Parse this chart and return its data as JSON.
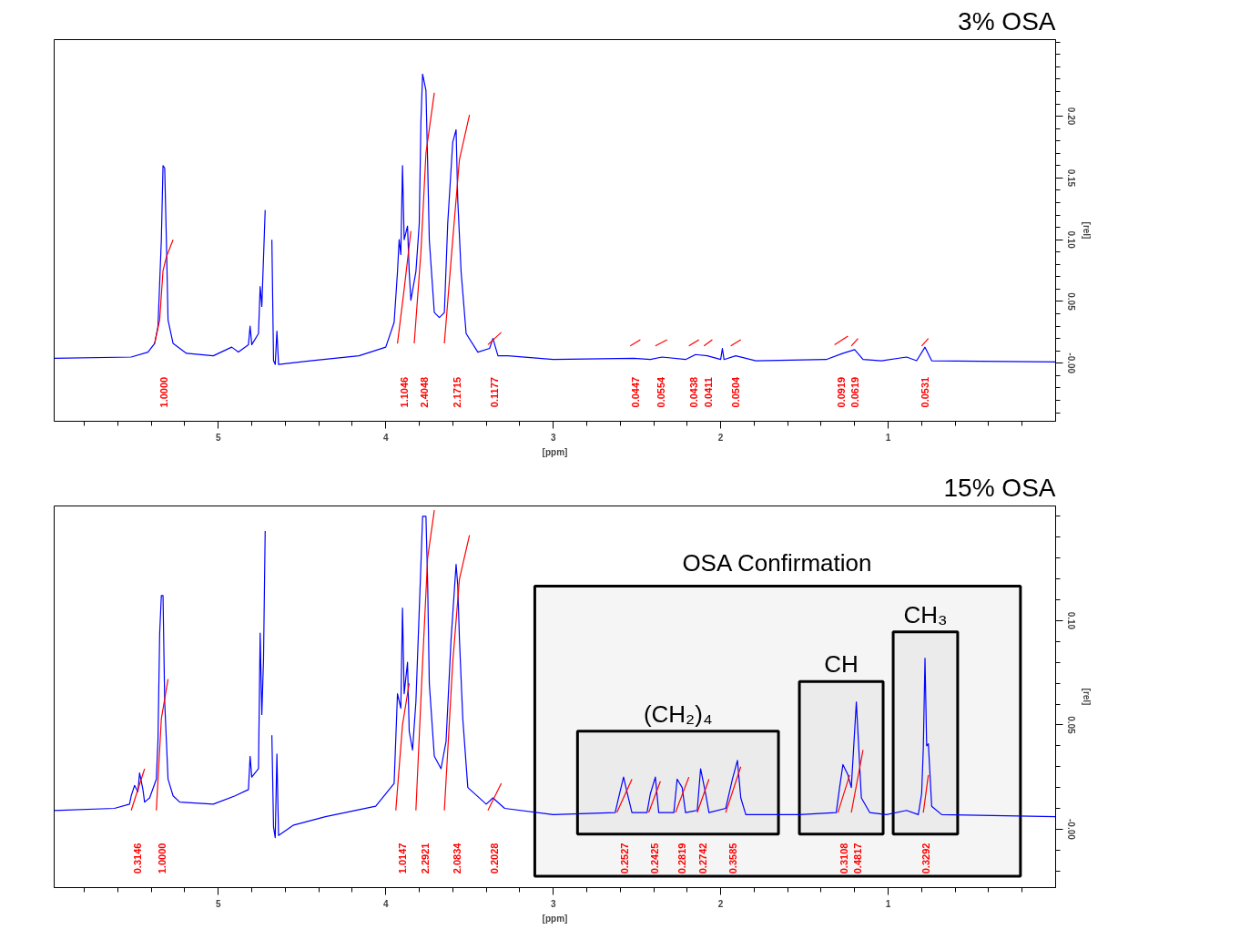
{
  "chart_data": [
    {
      "type": "line",
      "title": "3% OSA",
      "xlabel": "[ppm]",
      "ylabel": "[rel]",
      "xlim": [
        5.98,
        0.0
      ],
      "ylim": [
        -0.047,
        0.262
      ],
      "xticks": [
        {
          "value": 5.8,
          "label": null
        },
        {
          "value": 5.6,
          "label": null
        },
        {
          "value": 5.4,
          "label": null
        },
        {
          "value": 5.2,
          "label": null
        },
        5,
        {
          "value": 4.8,
          "label": null
        },
        {
          "value": 4.6,
          "label": null
        },
        {
          "value": 4.4,
          "label": null
        },
        {
          "value": 4.2,
          "label": null
        },
        4,
        {
          "value": 3.8,
          "label": null
        },
        {
          "value": 3.6,
          "label": null
        },
        {
          "value": 3.4,
          "label": null
        },
        {
          "value": 3.2,
          "label": null
        },
        3,
        {
          "value": 2.8,
          "label": null
        },
        {
          "value": 2.6,
          "label": null
        },
        {
          "value": 2.4,
          "label": null
        },
        {
          "value": 2.2,
          "label": null
        },
        2,
        {
          "value": 1.8,
          "label": null
        },
        {
          "value": 1.6,
          "label": null
        },
        {
          "value": 1.4,
          "label": null
        },
        {
          "value": 1.2,
          "label": null
        },
        1,
        {
          "value": 0.8,
          "label": null
        },
        {
          "value": 0.6,
          "label": null
        },
        {
          "value": 0.4,
          "label": null
        },
        {
          "value": 0.2,
          "label": null
        }
      ],
      "yticks": [
        {
          "value": -0.04,
          "label": null
        },
        {
          "value": -0.03,
          "label": null
        },
        {
          "value": -0.02,
          "label": null
        },
        {
          "value": -0.01,
          "label": null
        },
        {
          "value": 0,
          "label": "-0.00"
        },
        {
          "value": 0.01,
          "label": null
        },
        {
          "value": 0.02,
          "label": null
        },
        {
          "value": 0.03,
          "label": null
        },
        {
          "value": 0.04,
          "label": null
        },
        {
          "value": 0.05,
          "label": "0.05"
        },
        {
          "value": 0.06,
          "label": null
        },
        {
          "value": 0.07,
          "label": null
        },
        {
          "value": 0.08,
          "label": null
        },
        {
          "value": 0.09,
          "label": null
        },
        {
          "value": 0.1,
          "label": "0.10"
        },
        {
          "value": 0.11,
          "label": null
        },
        {
          "value": 0.12,
          "label": null
        },
        {
          "value": 0.13,
          "label": null
        },
        {
          "value": 0.14,
          "label": null
        },
        {
          "value": 0.15,
          "label": "0.15"
        },
        {
          "value": 0.16,
          "label": null
        },
        {
          "value": 0.17,
          "label": null
        },
        {
          "value": 0.18,
          "label": null
        },
        {
          "value": 0.19,
          "label": null
        },
        {
          "value": 0.2,
          "label": "0.20"
        },
        {
          "value": 0.21,
          "label": null
        },
        {
          "value": 0.22,
          "label": null
        },
        {
          "value": 0.23,
          "label": null
        },
        {
          "value": 0.24,
          "label": null
        },
        {
          "value": 0.25,
          "label": null
        },
        {
          "value": 0.26,
          "label": null
        }
      ],
      "annotations": [
        "1.0000",
        "1.1046",
        "2.4048",
        "2.1715",
        "0.1177",
        "0.0447",
        "0.0554",
        "0.0438",
        "0.0411",
        "0.0504",
        "0.0919",
        "0.0619",
        "0.0531"
      ],
      "series": [
        {
          "type": "line",
          "color": "#0000ff",
          "x": [
            5.98,
            5.52,
            5.42,
            5.38,
            5.36,
            5.34,
            5.33,
            5.32,
            5.31,
            5.3,
            5.27,
            5.19,
            5.03,
            4.92,
            4.88,
            4.82,
            4.81,
            4.8,
            4.76,
            4.75,
            4.74,
            4.72,
            4.71,
            4.69,
            4.68,
            4.67,
            4.66,
            4.65,
            4.64,
            4.45,
            4.16,
            4.0,
            3.95,
            3.93,
            3.92,
            3.91,
            3.9,
            3.89,
            3.87,
            3.86,
            3.85,
            3.82,
            3.8,
            3.79,
            3.78,
            3.76,
            3.75,
            3.74,
            3.71,
            3.68,
            3.65,
            3.63,
            3.6,
            3.58,
            3.57,
            3.55,
            3.52,
            3.45,
            3.38,
            3.36,
            3.33,
            3.27,
            3.0,
            2.52,
            2.42,
            2.35,
            2.21,
            2.15,
            2.08,
            2.0,
            1.99,
            1.98,
            1.91,
            1.79,
            1.37,
            1.27,
            1.2,
            1.15,
            1.04,
            0.89,
            0.83,
            0.78,
            0.74,
            0.0
          ],
          "values": [
            0.004,
            0.005,
            0.009,
            0.016,
            0.03,
            0.1,
            0.16,
            0.158,
            0.1,
            0.035,
            0.016,
            0.008,
            0.006,
            0.013,
            0.009,
            0.015,
            0.03,
            0.015,
            0.024,
            0.062,
            0.046,
            0.124,
            null,
            null,
            0.1,
            0.002,
            -0.001,
            0.026,
            -0.001,
            0.002,
            0.006,
            0.013,
            0.033,
            0.074,
            0.1,
            0.088,
            0.16,
            0.1,
            0.111,
            0.074,
            0.051,
            0.074,
            0.113,
            0.196,
            0.234,
            0.221,
            0.163,
            0.1,
            0.041,
            0.037,
            0.041,
            0.113,
            0.179,
            0.189,
            0.132,
            0.074,
            0.024,
            0.009,
            0.012,
            0.02,
            0.006,
            0.006,
            0.003,
            0.004,
            0.003,
            0.005,
            0.003,
            0.007,
            0.006,
            0.003,
            0.012,
            0.003,
            0.006,
            0.002,
            0.003,
            0.008,
            0.011,
            0.003,
            0.002,
            0.005,
            0.002,
            0.013,
            0.002,
            0.001
          ]
        },
        {
          "type": "line",
          "color": "#ff0000",
          "x": [
            5.38,
            5.35,
            5.33,
            5.31,
            5.27
          ],
          "values": [
            0.016,
            0.035,
            0.075,
            0.086,
            0.1
          ]
        },
        {
          "type": "line",
          "color": "#ff0000",
          "x": [
            3.93,
            3.89,
            3.85
          ],
          "values": [
            0.016,
            0.06,
            0.107
          ]
        },
        {
          "type": "line",
          "color": "#ff0000",
          "x": [
            3.83,
            3.79,
            3.76,
            3.71
          ],
          "values": [
            0.016,
            0.09,
            0.17,
            0.219
          ]
        },
        {
          "type": "line",
          "color": "#ff0000",
          "x": [
            3.65,
            3.6,
            3.56,
            3.5
          ],
          "values": [
            0.016,
            0.1,
            0.165,
            0.201
          ]
        },
        {
          "type": "line",
          "color": "#ff0000",
          "x": [
            3.39,
            3.31
          ],
          "values": [
            0.015,
            0.025
          ]
        },
        {
          "type": "line",
          "color": "#ff0000",
          "x": [
            2.54,
            2.48
          ],
          "values": [
            0.014,
            0.019
          ]
        },
        {
          "type": "line",
          "color": "#ff0000",
          "x": [
            2.39,
            2.32
          ],
          "values": [
            0.014,
            0.019
          ]
        },
        {
          "type": "line",
          "color": "#ff0000",
          "x": [
            2.19,
            2.13
          ],
          "values": [
            0.014,
            0.019
          ]
        },
        {
          "type": "line",
          "color": "#ff0000",
          "x": [
            2.1,
            2.05
          ],
          "values": [
            0.014,
            0.019
          ]
        },
        {
          "type": "line",
          "color": "#ff0000",
          "x": [
            1.94,
            1.88
          ],
          "values": [
            0.014,
            0.019
          ]
        },
        {
          "type": "line",
          "color": "#ff0000",
          "x": [
            1.32,
            1.24
          ],
          "values": [
            0.015,
            0.022
          ]
        },
        {
          "type": "line",
          "color": "#ff0000",
          "x": [
            1.22,
            1.18
          ],
          "values": [
            0.014,
            0.02
          ]
        },
        {
          "type": "line",
          "color": "#ff0000",
          "x": [
            0.8,
            0.76
          ],
          "values": [
            0.014,
            0.02
          ]
        }
      ]
    },
    {
      "type": "line",
      "title": "15% OSA",
      "xlabel": "[ppm]",
      "ylabel": "[rel]",
      "xlim": [
        5.98,
        0.0
      ],
      "ylim": [
        -0.028,
        0.155
      ],
      "xticks": [
        {
          "value": 5.8,
          "label": null
        },
        {
          "value": 5.6,
          "label": null
        },
        {
          "value": 5.4,
          "label": null
        },
        {
          "value": 5.2,
          "label": null
        },
        5,
        {
          "value": 4.8,
          "label": null
        },
        {
          "value": 4.6,
          "label": null
        },
        {
          "value": 4.4,
          "label": null
        },
        {
          "value": 4.2,
          "label": null
        },
        4,
        {
          "value": 3.8,
          "label": null
        },
        {
          "value": 3.6,
          "label": null
        },
        {
          "value": 3.4,
          "label": null
        },
        {
          "value": 3.2,
          "label": null
        },
        3,
        {
          "value": 2.8,
          "label": null
        },
        {
          "value": 2.6,
          "label": null
        },
        {
          "value": 2.4,
          "label": null
        },
        {
          "value": 2.2,
          "label": null
        },
        2,
        {
          "value": 1.8,
          "label": null
        },
        {
          "value": 1.6,
          "label": null
        },
        {
          "value": 1.4,
          "label": null
        },
        {
          "value": 1.2,
          "label": null
        },
        1,
        {
          "value": 0.8,
          "label": null
        },
        {
          "value": 0.6,
          "label": null
        },
        {
          "value": 0.4,
          "label": null
        },
        {
          "value": 0.2,
          "label": null
        }
      ],
      "yticks": [
        {
          "value": -0.02,
          "label": null
        },
        {
          "value": -0.01,
          "label": null
        },
        {
          "value": 0,
          "label": "-0.00"
        },
        {
          "value": 0.01,
          "label": null
        },
        {
          "value": 0.02,
          "label": null
        },
        {
          "value": 0.03,
          "label": null
        },
        {
          "value": 0.04,
          "label": null
        },
        {
          "value": 0.05,
          "label": "0.05"
        },
        {
          "value": 0.06,
          "label": null
        },
        {
          "value": 0.07,
          "label": null
        },
        {
          "value": 0.08,
          "label": null
        },
        {
          "value": 0.09,
          "label": null
        },
        {
          "value": 0.1,
          "label": "0.10"
        },
        {
          "value": 0.11,
          "label": null
        },
        {
          "value": 0.12,
          "label": null
        },
        {
          "value": 0.13,
          "label": null
        },
        {
          "value": 0.14,
          "label": null
        },
        {
          "value": 0.15,
          "label": null
        }
      ],
      "bands": [
        {
          "axis": "x",
          "from": 3.11,
          "to": 0.21,
          "label": "OSA Confirmation",
          "color": "#000000"
        },
        {
          "axis": "x",
          "from": 2.855,
          "to": 1.655,
          "label": "(CH₂)₄",
          "color": "#000000"
        },
        {
          "axis": "x",
          "from": 1.53,
          "to": 1.03,
          "label": "CH",
          "color": "#000000"
        },
        {
          "axis": "x",
          "from": 0.97,
          "to": 0.585,
          "label": "CH₃",
          "color": "#000000"
        }
      ],
      "annotations": [
        "0.3146",
        "1.0000",
        "1.0147",
        "2.2921",
        "2.0834",
        "0.2028",
        "0.2527",
        "0.2425",
        "0.2819",
        "0.2742",
        "0.3585",
        "0.3108",
        "0.4817",
        "0.3292"
      ],
      "series": [
        {
          "type": "line",
          "color": "#0000ff",
          "x": [
            5.98,
            5.62,
            5.53,
            5.52,
            5.5,
            5.48,
            5.47,
            5.45,
            5.44,
            5.41,
            5.37,
            5.36,
            5.35,
            5.34,
            5.33,
            5.32,
            5.3,
            5.27,
            5.23,
            5.03,
            4.9,
            4.82,
            4.81,
            4.8,
            4.76,
            4.75,
            4.74,
            4.73,
            4.72,
            4.71,
            4.69,
            4.68,
            4.67,
            4.66,
            4.65,
            4.64,
            4.55,
            4.36,
            4.06,
            3.95,
            3.93,
            3.91,
            3.9,
            3.89,
            3.87,
            3.86,
            3.84,
            3.82,
            3.79,
            3.78,
            3.76,
            3.75,
            3.74,
            3.71,
            3.67,
            3.64,
            3.61,
            3.58,
            3.57,
            3.56,
            3.54,
            3.51,
            3.4,
            3.36,
            3.29,
            3.0,
            2.63,
            2.61,
            2.58,
            2.56,
            2.53,
            2.44,
            2.42,
            2.39,
            2.37,
            2.28,
            2.26,
            2.23,
            2.21,
            2.14,
            2.12,
            2.09,
            2.07,
            1.97,
            1.93,
            1.9,
            1.88,
            1.85,
            1.53,
            1.31,
            1.29,
            1.27,
            1.24,
            1.22,
            1.19,
            1.18,
            1.16,
            1.11,
            1.01,
            0.89,
            0.82,
            0.8,
            0.79,
            0.78,
            0.77,
            0.76,
            0.74,
            0.68,
            0.0
          ],
          "values": [
            0.009,
            0.01,
            0.012,
            0.016,
            0.021,
            0.018,
            0.027,
            0.019,
            0.013,
            0.015,
            0.024,
            0.043,
            0.094,
            0.112,
            0.112,
            0.061,
            0.024,
            0.016,
            0.013,
            0.012,
            0.016,
            0.019,
            0.035,
            0.025,
            0.029,
            0.094,
            0.055,
            0.081,
            0.143,
            null,
            null,
            0.045,
            0.001,
            -0.004,
            0.036,
            -0.003,
            0.002,
            0.006,
            0.011,
            0.022,
            0.065,
            0.058,
            0.106,
            0.065,
            0.08,
            0.047,
            0.038,
            0.061,
            0.127,
            0.15,
            0.15,
            0.119,
            0.07,
            0.035,
            0.029,
            0.042,
            0.091,
            0.127,
            0.117,
            0.091,
            0.053,
            0.02,
            0.012,
            0.015,
            0.01,
            0.007,
            0.008,
            0.015,
            0.025,
            0.018,
            0.008,
            0.008,
            0.017,
            0.025,
            0.008,
            0.008,
            0.024,
            0.02,
            0.008,
            0.009,
            0.029,
            0.017,
            0.008,
            0.01,
            0.024,
            0.033,
            0.015,
            0.007,
            0.007,
            0.008,
            0.02,
            0.031,
            0.026,
            0.02,
            0.061,
            0.046,
            0.015,
            0.008,
            0.007,
            0.009,
            0.007,
            0.017,
            0.039,
            0.082,
            0.04,
            0.041,
            0.011,
            0.007,
            0.006
          ]
        },
        {
          "type": "line",
          "color": "#ff0000",
          "x": [
            5.52,
            5.44
          ],
          "values": [
            0.009,
            0.029
          ]
        },
        {
          "type": "line",
          "color": "#ff0000",
          "x": [
            5.37,
            5.34,
            5.3
          ],
          "values": [
            0.009,
            0.053,
            0.072
          ]
        },
        {
          "type": "line",
          "color": "#ff0000",
          "x": [
            3.94,
            3.9,
            3.86
          ],
          "values": [
            0.009,
            0.05,
            0.07
          ]
        },
        {
          "type": "line",
          "color": "#ff0000",
          "x": [
            3.82,
            3.78,
            3.75,
            3.71
          ],
          "values": [
            0.009,
            0.08,
            0.13,
            0.153
          ]
        },
        {
          "type": "line",
          "color": "#ff0000",
          "x": [
            3.65,
            3.6,
            3.56,
            3.5
          ],
          "values": [
            0.009,
            0.08,
            0.12,
            0.141
          ]
        },
        {
          "type": "line",
          "color": "#ff0000",
          "x": [
            3.39,
            3.31
          ],
          "values": [
            0.009,
            0.022
          ]
        },
        {
          "type": "line",
          "color": "#ff0000",
          "x": [
            2.62,
            2.53
          ],
          "values": [
            0.008,
            0.024
          ]
        },
        {
          "type": "line",
          "color": "#ff0000",
          "x": [
            2.43,
            2.36
          ],
          "values": [
            0.008,
            0.023
          ]
        },
        {
          "type": "line",
          "color": "#ff0000",
          "x": [
            2.27,
            2.19
          ],
          "values": [
            0.008,
            0.025
          ]
        },
        {
          "type": "line",
          "color": "#ff0000",
          "x": [
            2.14,
            2.07
          ],
          "values": [
            0.008,
            0.024
          ]
        },
        {
          "type": "line",
          "color": "#ff0000",
          "x": [
            1.97,
            1.88
          ],
          "values": [
            0.008,
            0.03
          ]
        },
        {
          "type": "line",
          "color": "#ff0000",
          "x": [
            1.3,
            1.23
          ],
          "values": [
            0.008,
            0.026
          ]
        },
        {
          "type": "line",
          "color": "#ff0000",
          "x": [
            1.22,
            1.15
          ],
          "values": [
            0.008,
            0.038
          ]
        },
        {
          "type": "line",
          "color": "#ff0000",
          "x": [
            0.79,
            0.76
          ],
          "values": [
            0.008,
            0.026
          ]
        }
      ]
    }
  ]
}
